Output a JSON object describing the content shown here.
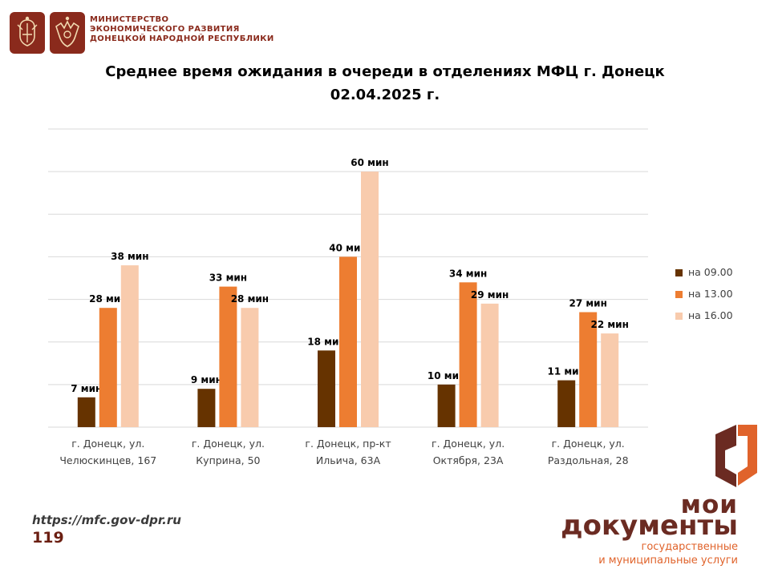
{
  "header": {
    "ministry_lines": [
      "МИНИСТЕРСТВО",
      "ЭКОНОМИЧЕСКОГО РАЗВИТИЯ",
      "ДОНЕЦКОЙ НАРОДНОЙ РЕСПУБЛИКИ"
    ]
  },
  "chart_data": {
    "type": "bar",
    "title": "Среднее время ожидания в очереди в отделениях МФЦ г. Донецк",
    "subtitle": "02.04.2025 г.",
    "xlabel": "",
    "ylabel": "",
    "ylim": [
      0,
      70
    ],
    "grid": true,
    "legend_position": "right",
    "value_suffix": " мин",
    "categories": [
      [
        "г. Донецк, ул.",
        "Челюскинцев, 167"
      ],
      [
        "г. Донецк, ул.",
        "Куприна, 50"
      ],
      [
        "г. Донецк, пр-кт",
        "Ильича, 63А"
      ],
      [
        "г. Донецк, ул.",
        "Октября, 23А"
      ],
      [
        "г. Донецк, ул.",
        "Раздольная, 28"
      ]
    ],
    "series": [
      {
        "name": "на 09.00",
        "color": "#663300",
        "values": [
          7,
          9,
          18,
          10,
          11
        ]
      },
      {
        "name": "на 13.00",
        "color": "#ed7d31",
        "values": [
          28,
          33,
          40,
          34,
          27
        ]
      },
      {
        "name": "на 16.00",
        "color": "#f8cbad",
        "values": [
          38,
          28,
          60,
          29,
          22
        ]
      }
    ]
  },
  "footer": {
    "url": "https://mfc.gov-dpr.ru",
    "page_number": "119"
  },
  "brand": {
    "line1": "мои",
    "line2": "документы",
    "line3": "государственные",
    "line4": "и муниципальные услуги"
  }
}
